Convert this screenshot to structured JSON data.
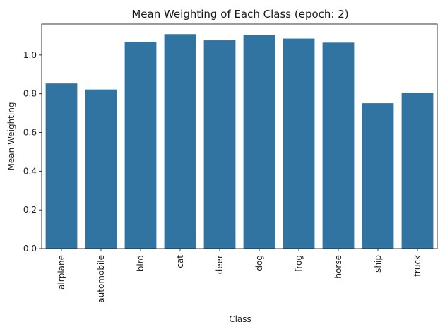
{
  "chart_data": {
    "type": "bar",
    "title": "Mean Weighting of Each Class (epoch: 2)",
    "xlabel": "Class",
    "ylabel": "Mean Weighting",
    "categories": [
      "airplane",
      "automobile",
      "bird",
      "cat",
      "deer",
      "dog",
      "frog",
      "horse",
      "ship",
      "truck"
    ],
    "values": [
      0.853,
      0.822,
      1.068,
      1.108,
      1.076,
      1.104,
      1.085,
      1.064,
      0.751,
      0.806
    ],
    "yticks": [
      "0.0",
      "0.2",
      "0.4",
      "0.6",
      "0.8",
      "1.0"
    ],
    "ylim": [
      0,
      1.16
    ],
    "grid": false,
    "color": "#3274a1"
  }
}
